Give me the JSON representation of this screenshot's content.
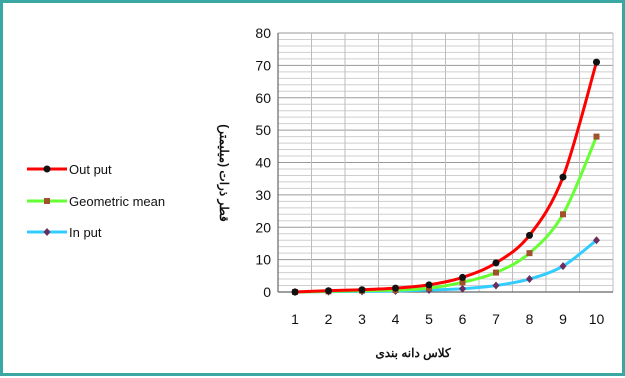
{
  "chart_data": {
    "type": "line",
    "title": "",
    "xlabel": "کلاس دانه بندی",
    "ylabel": "قطر ذرات (میلیمتر)",
    "categories": [
      "1",
      "2",
      "3",
      "4",
      "5",
      "6",
      "7",
      "8",
      "9",
      "10"
    ],
    "ylim": [
      0,
      80
    ],
    "yticks": [
      "0",
      "10",
      "20",
      "30",
      "40",
      "50",
      "60",
      "70",
      "80"
    ],
    "grid": true,
    "legend_position": "left",
    "series": [
      {
        "name": "Out put",
        "color": "#ff0000",
        "marker_color": "#111111",
        "values": [
          0,
          0.4,
          0.7,
          1.2,
          2.2,
          4.5,
          9,
          17.5,
          35.5,
          71
        ]
      },
      {
        "name": "Geometric mean",
        "color": "#66ff33",
        "marker_color": "#a0522d",
        "values": [
          0,
          0.2,
          0.4,
          0.6,
          1.2,
          3,
          6,
          12,
          24,
          48
        ]
      },
      {
        "name": "In put",
        "color": "#33ccff",
        "marker_color": "#6b2d5c",
        "values": [
          0,
          0.1,
          0.2,
          0.3,
          0.6,
          1,
          2,
          4,
          8,
          16
        ]
      }
    ]
  }
}
